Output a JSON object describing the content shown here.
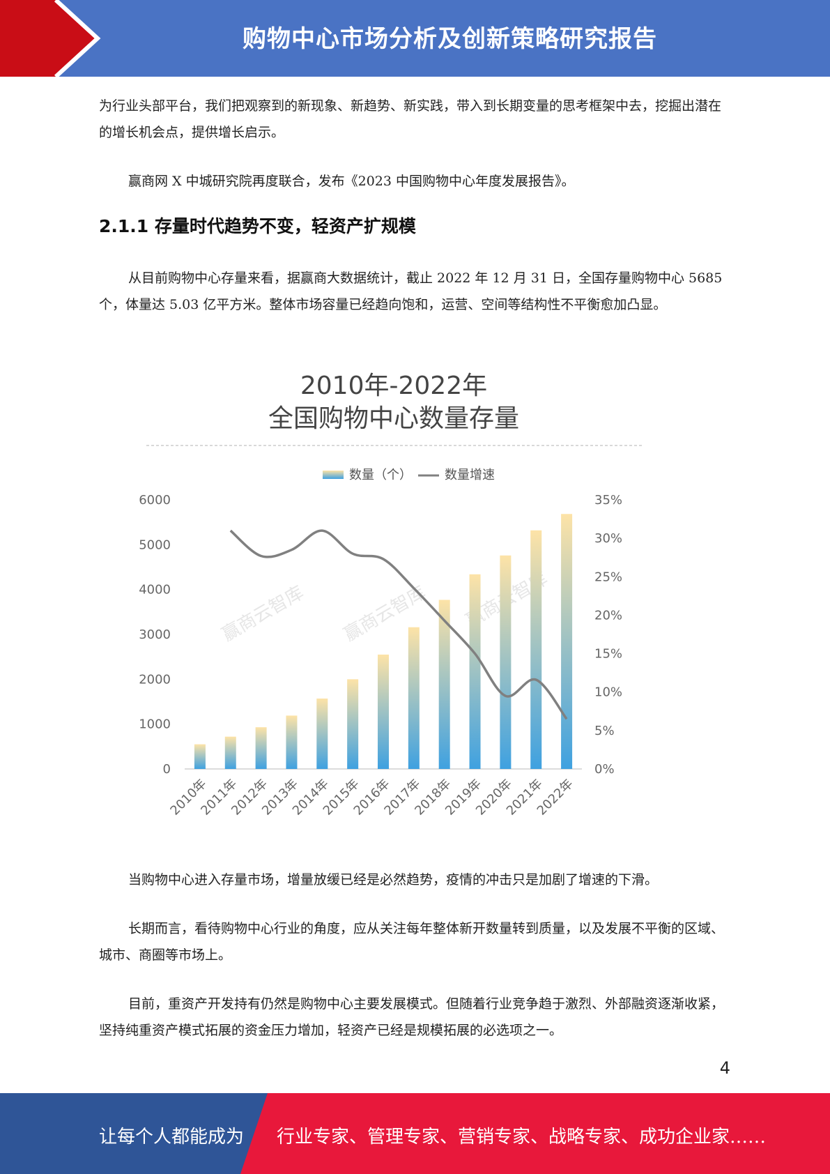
{
  "header": {
    "title": "购物中心市场分析及创新策略研究报告"
  },
  "paragraphs": {
    "p1": "为行业头部平台，我们把观察到的新现象、新趋势、新实践，带入到长期变量的思考框架中去，挖掘出潜在的增长机会点，提供增长启示。",
    "p2": "赢商网 X 中城研究院再度联合，发布《2023 中国购物中心年度发展报告》。",
    "p4": "从目前购物中心存量来看，据赢商大数据统计，截止 2022 年 12 月 31 日，全国存量购物中心 5685 个，体量达 5.03 亿平方米。整体市场容量已经趋向饱和，运营、空间等结构性不平衡愈加凸显。",
    "p5": "当购物中心进入存量市场，增量放缓已经是必然趋势，疫情的冲击只是加剧了增速的下滑。",
    "p6": "长期而言，看待购物中心行业的角度，应从关注每年整体新开数量转到质量，以及发展不平衡的区域、城市、商圈等市场上。",
    "p7": "目前，重资产开发持有仍然是购物中心主要发展模式。但随着行业竞争趋于激烈、外部融资逐渐收紧，坚持纯重资产模式拓展的资金压力增加，轻资产已经是规模拓展的必选项之一。"
  },
  "section": {
    "heading": "2.1.1 存量时代趋势不变，轻资产扩规模"
  },
  "chart_data": {
    "type": "bar",
    "title_line1": "2010年-2022年",
    "title_line2": "全国购物中心数量存量",
    "categories": [
      "2010年",
      "2011年",
      "2012年",
      "2013年",
      "2014年",
      "2015年",
      "2016年",
      "2017年",
      "2018年",
      "2019年",
      "2020年",
      "2021年",
      "2022年"
    ],
    "series": [
      {
        "name": "数量（个）",
        "type": "bar",
        "axis": "left",
        "values": [
          550,
          720,
          930,
          1190,
          1570,
          2000,
          2550,
          3160,
          3770,
          4340,
          4760,
          5320,
          5685
        ]
      },
      {
        "name": "数量增速",
        "type": "line",
        "axis": "right",
        "values": [
          null,
          31,
          27.7,
          28.5,
          31,
          28,
          27.3,
          23.5,
          19.3,
          15,
          9.5,
          11.6,
          6.5
        ]
      }
    ],
    "ylim_left": [
      0,
      6000
    ],
    "yticks_left": [
      "0",
      "1000",
      "2000",
      "3000",
      "4000",
      "5000",
      "6000"
    ],
    "ylim_right": [
      0,
      35
    ],
    "yticks_right": [
      "0%",
      "5%",
      "10%",
      "15%",
      "20%",
      "25%",
      "30%",
      "35%"
    ],
    "legend_position": "top",
    "colors": {
      "bar_top": "#fde3a7",
      "bar_bottom": "#3fa1e0",
      "line": "#808080"
    },
    "watermark": "赢商云智库"
  },
  "page_number": "4",
  "footer": {
    "left": "让每个人都能成为",
    "right": "行业专家、管理专家、营销专家、战略专家、成功企业家……"
  }
}
